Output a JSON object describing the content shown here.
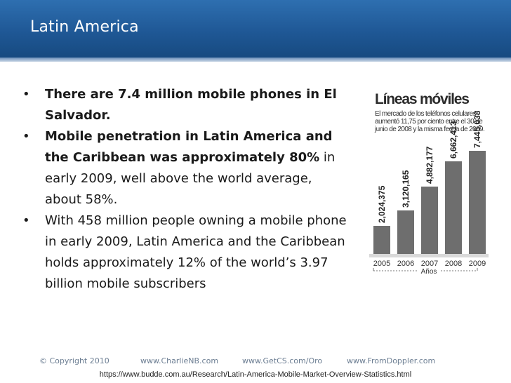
{
  "slide": {
    "title": "Latin America"
  },
  "bullets": [
    {
      "bold": "There are 7.4 million mobile phones in El Salvador.",
      "rest": ""
    },
    {
      "bold": "Mobile penetration in Latin America and the Caribbean was approximately 80%",
      "rest": " in early 2009, well above the world average, about 58%."
    },
    {
      "bold": "",
      "rest": "With 458 million people owning a mobile phone in early 2009, Latin America and the Caribbean holds approximately 12% of the world’s 3.97 billion mobile subscribers"
    }
  ],
  "chart_data": {
    "type": "bar",
    "title": "Líneas móviles",
    "subtitle": "El mercado de los teléfonos celulares aumentó 11,75 por ciento entre el 30 de junio de 2008 y la misma fecha de 2009.",
    "categories": [
      "2005",
      "2006",
      "2007",
      "2008",
      "2009"
    ],
    "values": [
      2024375,
      3120165,
      4882177,
      6662413,
      7445038
    ],
    "data_labels": [
      "2,024,375",
      "3,120,165",
      "4,882,177",
      "6,662,413",
      "7,445,038"
    ],
    "xlabel": "Años",
    "ylabel": "",
    "ylim": [
      0,
      8000000
    ],
    "bar_color": "#6e6e6e",
    "grid": false,
    "legend": "none"
  },
  "footer": {
    "copyright": "© Copyright 2010",
    "link1": "www.CharlieNB.com",
    "link2": "www.GetCS.com/Oro",
    "link3": "www.FromDoppler.com",
    "source": "https://www.budde.com.au/Research/Latin-America-Mobile-Market-Overview-Statistics.html"
  }
}
